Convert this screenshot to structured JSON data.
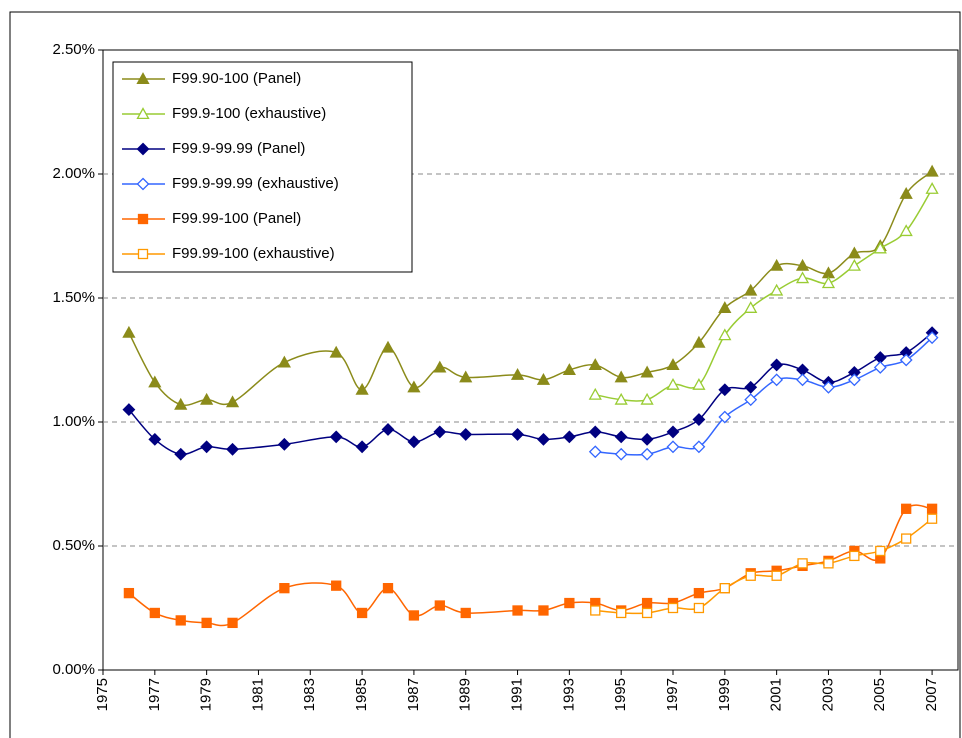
{
  "chart_data": {
    "type": "line",
    "xlim": [
      1975,
      2008
    ],
    "xticks": [
      1975,
      1977,
      1979,
      1981,
      1983,
      1985,
      1987,
      1989,
      1991,
      1993,
      1995,
      1997,
      1999,
      2001,
      2003,
      2005,
      2007
    ],
    "ylim": [
      0,
      2.5
    ],
    "yticks": [
      {
        "value": 0,
        "label": "0.00%"
      },
      {
        "value": 0.5,
        "label": "0.50%"
      },
      {
        "value": 1,
        "label": "1.00%"
      },
      {
        "value": 1.5,
        "label": "1.50%"
      },
      {
        "value": 2,
        "label": "2.00%"
      },
      {
        "value": 2.5,
        "label": "2.50%"
      }
    ],
    "grid": true,
    "legend": "upper left",
    "series": [
      {
        "name": "F99.90-100 (Panel)",
        "color": "#8b8b1a",
        "marker": "triangle",
        "filled": true,
        "x": [
          1976,
          1977,
          1978,
          1979,
          1980,
          1982,
          1984,
          1985,
          1986,
          1987,
          1988,
          1989,
          1991,
          1992,
          1993,
          1994,
          1995,
          1996,
          1997,
          1998,
          1999,
          2000,
          2001,
          2002,
          2003,
          2004,
          2005,
          2006,
          2007
        ],
        "values": [
          1.36,
          1.16,
          1.07,
          1.09,
          1.08,
          1.24,
          1.28,
          1.13,
          1.3,
          1.14,
          1.22,
          1.18,
          1.19,
          1.17,
          1.21,
          1.23,
          1.18,
          1.2,
          1.23,
          1.32,
          1.46,
          1.53,
          1.63,
          1.63,
          1.6,
          1.68,
          1.71,
          1.92,
          2.01
        ]
      },
      {
        "name": "F99.9-100 (exhaustive)",
        "color": "#99cc33",
        "marker": "triangle",
        "filled": false,
        "x": [
          1994,
          1995,
          1996,
          1997,
          1998,
          1999,
          2000,
          2001,
          2002,
          2003,
          2004,
          2005,
          2006,
          2007
        ],
        "values": [
          1.11,
          1.09,
          1.09,
          1.15,
          1.15,
          1.35,
          1.46,
          1.53,
          1.58,
          1.56,
          1.63,
          1.7,
          1.77,
          1.94
        ]
      },
      {
        "name": "F99.9-99.99 (Panel)",
        "color": "#000080",
        "marker": "diamond",
        "filled": true,
        "x": [
          1976,
          1977,
          1978,
          1979,
          1980,
          1982,
          1984,
          1985,
          1986,
          1987,
          1988,
          1989,
          1991,
          1992,
          1993,
          1994,
          1995,
          1996,
          1997,
          1998,
          1999,
          2000,
          2001,
          2002,
          2003,
          2004,
          2005,
          2006,
          2007
        ],
        "values": [
          1.05,
          0.93,
          0.87,
          0.9,
          0.89,
          0.91,
          0.94,
          0.9,
          0.97,
          0.92,
          0.96,
          0.95,
          0.95,
          0.93,
          0.94,
          0.96,
          0.94,
          0.93,
          0.96,
          1.01,
          1.13,
          1.14,
          1.23,
          1.21,
          1.16,
          1.2,
          1.26,
          1.28,
          1.36
        ]
      },
      {
        "name": "F99.9-99.99 (exhaustive)",
        "color": "#3366ff",
        "marker": "diamond",
        "filled": false,
        "x": [
          1994,
          1995,
          1996,
          1997,
          1998,
          1999,
          2000,
          2001,
          2002,
          2003,
          2004,
          2005,
          2006,
          2007
        ],
        "values": [
          0.88,
          0.87,
          0.87,
          0.9,
          0.9,
          1.02,
          1.09,
          1.17,
          1.17,
          1.14,
          1.17,
          1.22,
          1.25,
          1.34
        ]
      },
      {
        "name": "F99.99-100 (Panel)",
        "color": "#ff6600",
        "marker": "square",
        "filled": true,
        "x": [
          1976,
          1977,
          1978,
          1979,
          1980,
          1982,
          1984,
          1985,
          1986,
          1987,
          1988,
          1989,
          1991,
          1992,
          1993,
          1994,
          1995,
          1996,
          1997,
          1998,
          1999,
          2000,
          2001,
          2002,
          2003,
          2004,
          2005,
          2006,
          2007
        ],
        "values": [
          0.31,
          0.23,
          0.2,
          0.19,
          0.19,
          0.33,
          0.34,
          0.23,
          0.33,
          0.22,
          0.26,
          0.23,
          0.24,
          0.24,
          0.27,
          0.27,
          0.24,
          0.27,
          0.27,
          0.31,
          0.33,
          0.39,
          0.4,
          0.42,
          0.44,
          0.48,
          0.45,
          0.65,
          0.65
        ]
      },
      {
        "name": "F99.99-100 (exhaustive)",
        "color": "#ff9900",
        "marker": "square",
        "filled": false,
        "x": [
          1994,
          1995,
          1996,
          1997,
          1998,
          1999,
          2000,
          2001,
          2002,
          2003,
          2004,
          2005,
          2006,
          2007
        ],
        "values": [
          0.24,
          0.23,
          0.23,
          0.25,
          0.25,
          0.33,
          0.38,
          0.38,
          0.43,
          0.43,
          0.46,
          0.48,
          0.53,
          0.61
        ]
      }
    ]
  }
}
